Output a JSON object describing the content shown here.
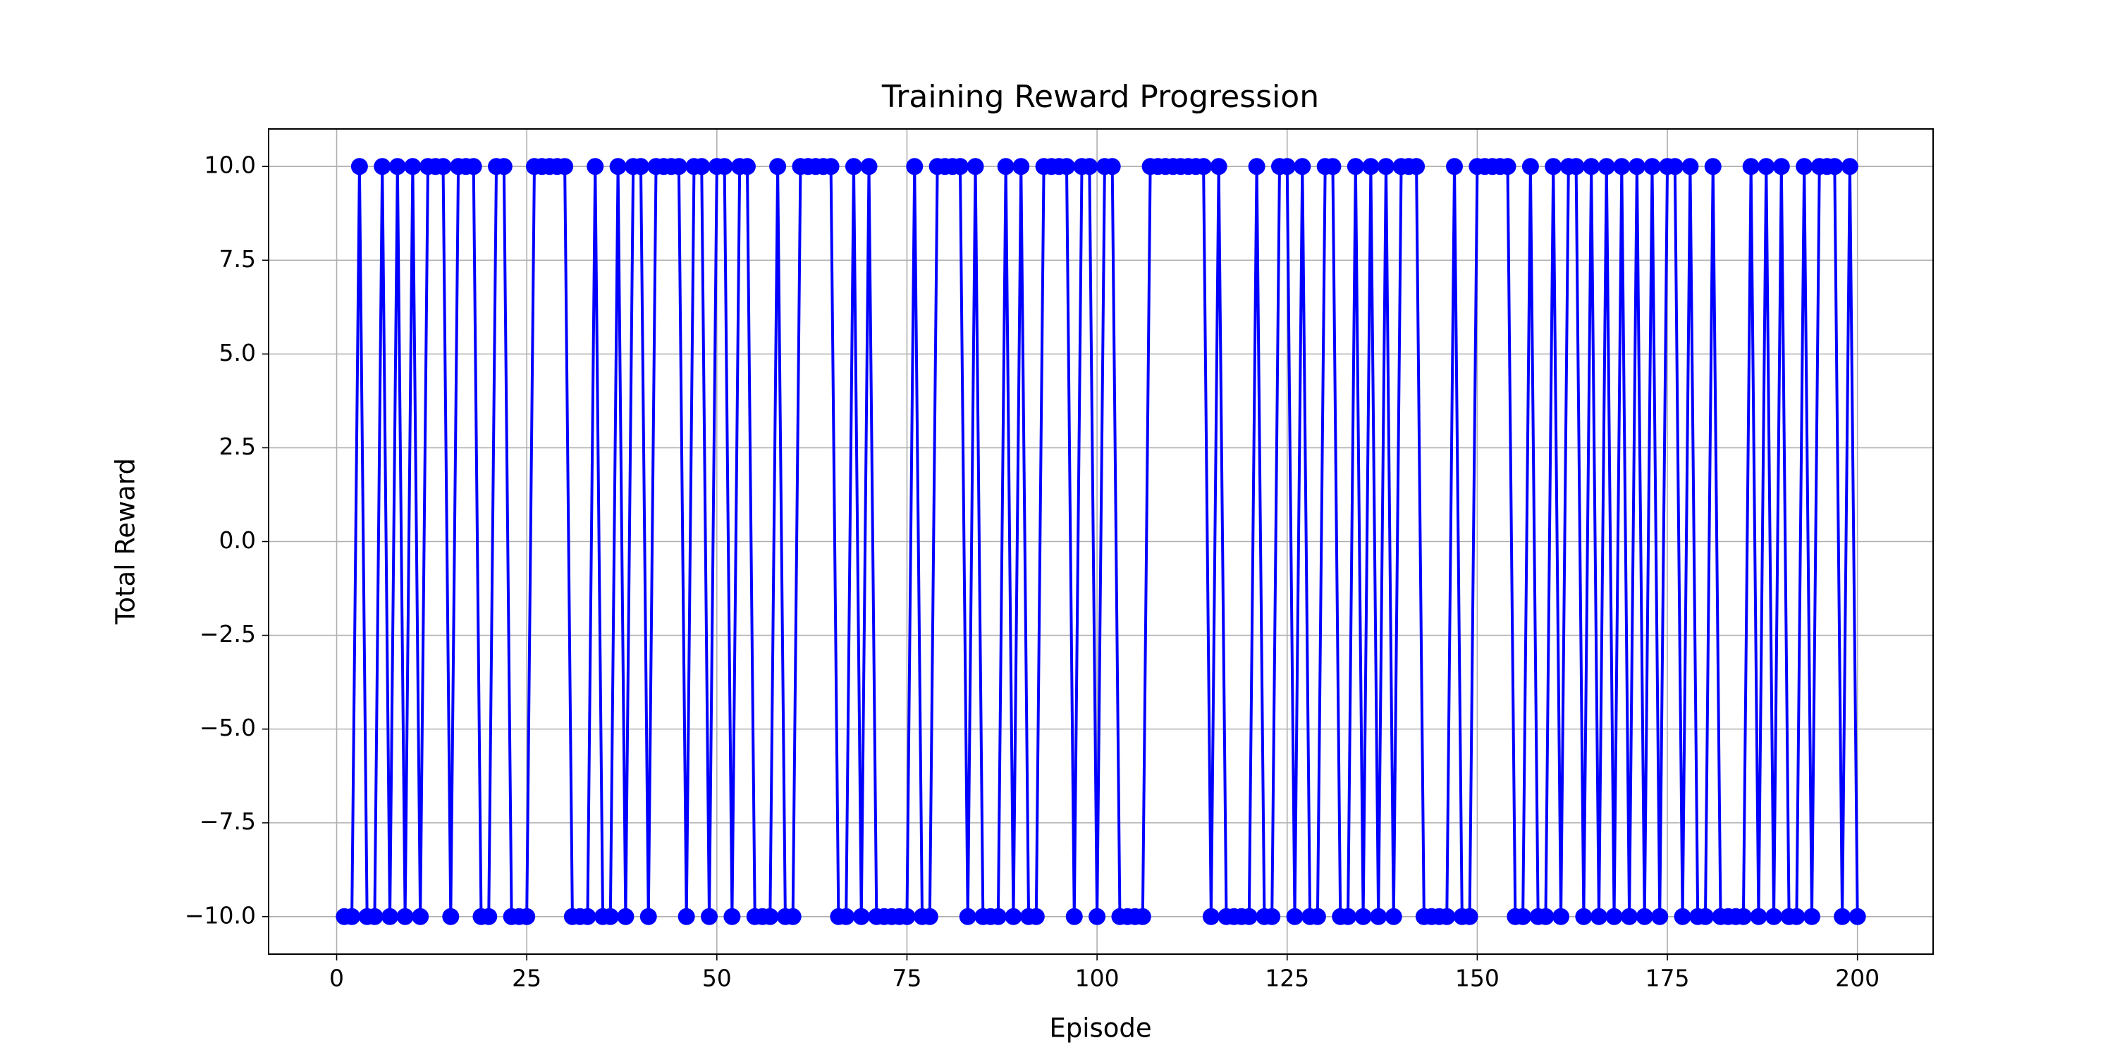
{
  "chart_data": {
    "type": "line",
    "title": "Training Reward Progression",
    "x_label": "Episode",
    "y_label": "Total Reward",
    "x": [
      1,
      2,
      3,
      4,
      5,
      6,
      7,
      8,
      9,
      10,
      11,
      12,
      13,
      14,
      15,
      16,
      17,
      18,
      19,
      20,
      21,
      22,
      23,
      24,
      25,
      26,
      27,
      28,
      29,
      30,
      31,
      32,
      33,
      34,
      35,
      36,
      37,
      38,
      39,
      40,
      41,
      42,
      43,
      44,
      45,
      46,
      47,
      48,
      49,
      50,
      51,
      52,
      53,
      54,
      55,
      56,
      57,
      58,
      59,
      60,
      61,
      62,
      63,
      64,
      65,
      66,
      67,
      68,
      69,
      70,
      71,
      72,
      73,
      74,
      75,
      76,
      77,
      78,
      79,
      80,
      81,
      82,
      83,
      84,
      85,
      86,
      87,
      88,
      89,
      90,
      91,
      92,
      93,
      94,
      95,
      96,
      97,
      98,
      99,
      100,
      101,
      102,
      103,
      104,
      105,
      106,
      107,
      108,
      109,
      110,
      111,
      112,
      113,
      114,
      115,
      116,
      117,
      118,
      119,
      120,
      121,
      122,
      123,
      124,
      125,
      126,
      127,
      128,
      129,
      130,
      131,
      132,
      133,
      134,
      135,
      136,
      137,
      138,
      139,
      140,
      141,
      142,
      143,
      144,
      145,
      146,
      147,
      148,
      149,
      150,
      151,
      152,
      153,
      154,
      155,
      156,
      157,
      158,
      159,
      160,
      161,
      162,
      163,
      164,
      165,
      166,
      167,
      168,
      169,
      170,
      171,
      172,
      173,
      174,
      175,
      176,
      177,
      178,
      179,
      180,
      181,
      182,
      183,
      184,
      185,
      186,
      187,
      188,
      189,
      190,
      191,
      192,
      193,
      194,
      195,
      196,
      197,
      198,
      199,
      200
    ],
    "series": [
      {
        "color": "#0000ff",
        "values": [
          -10,
          -10,
          10,
          -10,
          -10,
          10,
          -10,
          10,
          -10,
          10,
          -10,
          10,
          10,
          10,
          -10,
          10,
          10,
          10,
          -10,
          -10,
          10,
          10,
          -10,
          -10,
          -10,
          10,
          10,
          10,
          10,
          10,
          -10,
          -10,
          -10,
          10,
          -10,
          -10,
          10,
          -10,
          10,
          10,
          -10,
          10,
          10,
          10,
          10,
          -10,
          10,
          10,
          -10,
          10,
          10,
          -10,
          10,
          10,
          -10,
          -10,
          -10,
          10,
          -10,
          -10,
          10,
          10,
          10,
          10,
          10,
          -10,
          -10,
          10,
          -10,
          10,
          -10,
          -10,
          -10,
          -10,
          -10,
          10,
          -10,
          -10,
          10,
          10,
          10,
          10,
          -10,
          10,
          -10,
          -10,
          -10,
          10,
          -10,
          10,
          -10,
          -10,
          10,
          10,
          10,
          10,
          -10,
          10,
          10,
          -10,
          10,
          10,
          -10,
          -10,
          -10,
          -10,
          10,
          10,
          10,
          10,
          10,
          10,
          10,
          10,
          -10,
          10,
          -10,
          -10,
          -10,
          -10,
          10,
          -10,
          -10,
          10,
          10,
          -10,
          10,
          -10,
          -10,
          10,
          10,
          -10,
          -10,
          10,
          -10,
          10,
          -10,
          10,
          -10,
          10,
          10,
          10,
          -10,
          -10,
          -10,
          -10,
          10,
          -10,
          -10,
          10,
          10,
          10,
          10,
          10,
          -10,
          -10,
          10,
          -10,
          -10,
          10,
          -10,
          10,
          10,
          -10,
          10,
          -10,
          10,
          -10,
          10,
          -10,
          10,
          -10,
          10,
          -10,
          10,
          10,
          -10,
          10,
          -10,
          -10,
          10,
          -10,
          -10,
          -10,
          -10,
          10,
          -10,
          10,
          -10,
          10,
          -10,
          -10,
          10,
          -10,
          10,
          10,
          10,
          -10,
          10,
          -10
        ]
      }
    ],
    "xlim": [
      -8.95,
      209.95
    ],
    "xticks": [
      0,
      25,
      50,
      75,
      100,
      125,
      150,
      175,
      200
    ],
    "ylim": [
      -11,
      11
    ],
    "yticks": [
      {
        "value": -10,
        "label": "−10.0"
      },
      {
        "value": -7.5,
        "label": "−7.5"
      },
      {
        "value": -5,
        "label": "−5.0"
      },
      {
        "value": -2.5,
        "label": "−2.5"
      },
      {
        "value": 0,
        "label": "0.0"
      },
      {
        "value": 2.5,
        "label": "2.5"
      },
      {
        "value": 5,
        "label": "5.0"
      },
      {
        "value": 7.5,
        "label": "7.5"
      },
      {
        "value": 10,
        "label": "10.0"
      }
    ],
    "grid": true
  }
}
